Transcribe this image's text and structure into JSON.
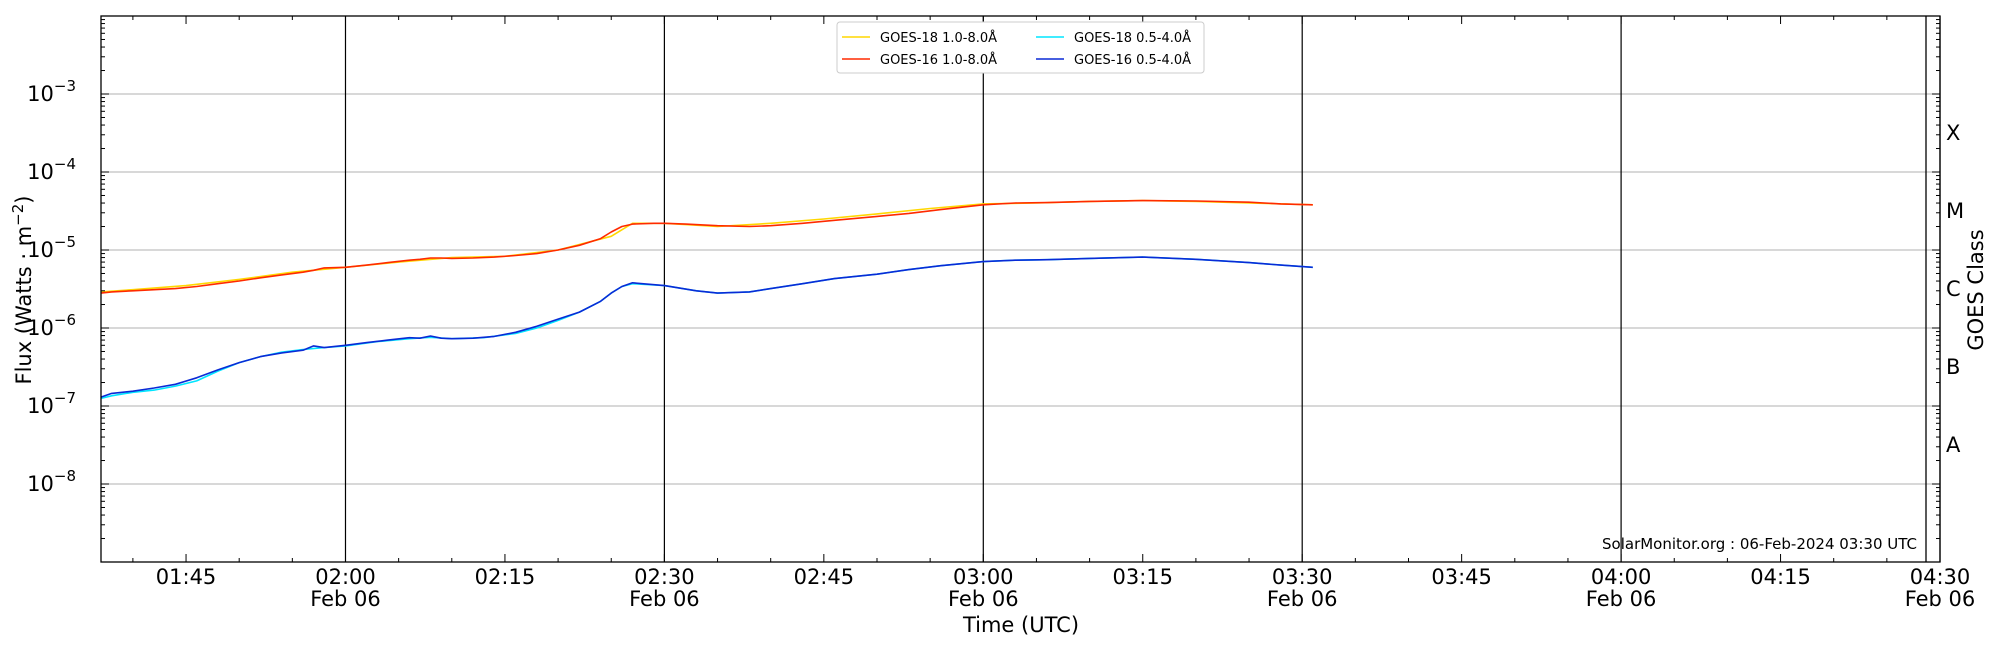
{
  "chart_data": {
    "type": "line",
    "ylabel": "Flux (Watts · m⁻²)",
    "xlabel": "Time (UTC)",
    "y2label": "GOES Class",
    "yscale": "log",
    "ylim": [
      1e-09,
      0.01
    ],
    "xlim_minutes": [
      97,
      270
    ],
    "credit": "SolarMonitor.org : 06-Feb-2024 03:30 UTC",
    "legend_position": "top-center",
    "grid": "horizontal at decades",
    "y_ticks": [
      {
        "value": 1e-08,
        "base": "10",
        "exp": "−8"
      },
      {
        "value": 1e-07,
        "base": "10",
        "exp": "−7"
      },
      {
        "value": 1e-06,
        "base": "10",
        "exp": "−6"
      },
      {
        "value": 1e-05,
        "base": "10",
        "exp": "−5"
      },
      {
        "value": 0.0001,
        "base": "10",
        "exp": "−4"
      },
      {
        "value": 0.001,
        "base": "10",
        "exp": "−3"
      }
    ],
    "x_ticks": [
      {
        "minute": 105,
        "time": "01:45",
        "date": ""
      },
      {
        "minute": 120,
        "time": "02:00",
        "date": "Feb 06"
      },
      {
        "minute": 135,
        "time": "02:15",
        "date": ""
      },
      {
        "minute": 150,
        "time": "02:30",
        "date": "Feb 06"
      },
      {
        "minute": 165,
        "time": "02:45",
        "date": ""
      },
      {
        "minute": 180,
        "time": "03:00",
        "date": "Feb 06"
      },
      {
        "minute": 195,
        "time": "03:15",
        "date": ""
      },
      {
        "minute": 210,
        "time": "03:30",
        "date": "Feb 06"
      },
      {
        "minute": 225,
        "time": "03:45",
        "date": ""
      },
      {
        "minute": 240,
        "time": "04:00",
        "date": "Feb 06"
      },
      {
        "minute": 255,
        "time": "04:15",
        "date": ""
      },
      {
        "minute": 270,
        "time": "04:30",
        "date": "Feb 06"
      }
    ],
    "vlines_minutes": [
      120,
      150,
      180,
      210,
      240,
      270
    ],
    "goes_classes": [
      {
        "label": "A",
        "min": 1e-08,
        "max": 1e-07
      },
      {
        "label": "B",
        "min": 1e-07,
        "max": 1e-06
      },
      {
        "label": "C",
        "min": 1e-06,
        "max": 1e-05
      },
      {
        "label": "M",
        "min": 1e-05,
        "max": 0.0001
      },
      {
        "label": "X",
        "min": 0.0001,
        "max": 0.001
      }
    ],
    "x_unit": "minutes after 00:00 UTC, 06-Feb-2024",
    "series": [
      {
        "name": "GOES-18 1.0-8.0Å",
        "color": "#ffd700",
        "x": [
          97,
          100,
          105,
          110,
          115,
          120,
          125,
          130,
          135,
          140,
          145,
          147,
          150,
          155,
          160,
          165,
          170,
          175,
          180,
          185,
          190,
          195,
          200,
          205,
          211
        ],
        "y": [
          2.9e-06,
          3.1e-06,
          3.5e-06,
          4.2e-06,
          5.2e-06,
          6e-06,
          7e-06,
          8e-06,
          8.3e-06,
          1e-05,
          1.5e-05,
          2.2e-05,
          2.2e-05,
          2e-05,
          2.2e-05,
          2.5e-05,
          2.9e-05,
          3.4e-05,
          3.9e-05,
          4e-05,
          4.2e-05,
          4.3e-05,
          4.2e-05,
          4e-05,
          3.8e-05
        ]
      },
      {
        "name": "GOES-16 1.0-8.0Å",
        "color": "#ff2a00",
        "x": [
          97,
          98,
          100,
          102,
          104,
          106,
          108,
          110,
          112,
          114,
          116,
          117,
          118,
          120,
          122,
          124,
          126,
          127,
          128,
          129,
          130,
          132,
          134,
          136,
          138,
          140,
          142,
          144,
          145,
          146,
          147,
          149,
          150,
          152,
          155,
          158,
          160,
          163,
          166,
          170,
          173,
          176,
          180,
          183,
          186,
          190,
          195,
          200,
          205,
          208,
          211
        ],
        "y": [
          2.8e-06,
          2.9e-06,
          3e-06,
          3.1e-06,
          3.2e-06,
          3.4e-06,
          3.7e-06,
          4e-06,
          4.4e-06,
          4.8e-06,
          5.2e-06,
          5.5e-06,
          5.9e-06,
          6e-06,
          6.4e-06,
          6.9e-06,
          7.4e-06,
          7.6e-06,
          7.9e-06,
          7.9e-06,
          7.8e-06,
          7.9e-06,
          8.1e-06,
          8.5e-06,
          9e-06,
          1e-05,
          1.15e-05,
          1.4e-05,
          1.7e-05,
          2e-05,
          2.15e-05,
          2.2e-05,
          2.2e-05,
          2.15e-05,
          2.05e-05,
          2e-05,
          2.05e-05,
          2.2e-05,
          2.4e-05,
          2.7e-05,
          2.95e-05,
          3.3e-05,
          3.8e-05,
          4e-05,
          4.05e-05,
          4.2e-05,
          4.3e-05,
          4.25e-05,
          4.1e-05,
          3.9e-05,
          3.8e-05
        ]
      },
      {
        "name": "GOES-18 0.5-4.0Å",
        "color": "#00e5ff",
        "x": [
          97,
          98,
          100,
          102,
          104,
          106,
          108,
          110,
          112,
          114,
          116,
          118,
          120,
          123,
          126,
          128,
          130,
          133,
          136,
          138,
          140,
          142,
          144,
          145,
          146,
          147,
          150,
          153,
          155,
          158,
          160,
          163,
          166,
          170,
          173,
          176,
          180,
          183,
          186,
          190,
          195,
          200,
          205,
          208,
          211
        ],
        "y": [
          1.25e-07,
          1.35e-07,
          1.5e-07,
          1.6e-07,
          1.8e-07,
          2.1e-07,
          2.8e-07,
          3.6e-07,
          4.3e-07,
          4.9e-07,
          5.3e-07,
          5.6e-07,
          5.9e-07,
          6.7e-07,
          7.3e-07,
          7.6e-07,
          7.3e-07,
          7.5e-07,
          8.5e-07,
          1e-06,
          1.25e-06,
          1.6e-06,
          2.2e-06,
          2.8e-06,
          3.4e-06,
          3.7e-06,
          3.5e-06,
          3e-06,
          2.8e-06,
          2.9e-06,
          3.2e-06,
          3.7e-06,
          4.3e-06,
          4.9e-06,
          5.6e-06,
          6.3e-06,
          7.1e-06,
          7.4e-06,
          7.5e-06,
          7.8e-06,
          8.1e-06,
          7.6e-06,
          6.9e-06,
          6.4e-06,
          6e-06
        ]
      },
      {
        "name": "GOES-16 0.5-4.0Å",
        "color": "#0a2ad6",
        "x": [
          97,
          98,
          100,
          102,
          104,
          106,
          108,
          110,
          112,
          114,
          116,
          117,
          118,
          120,
          122,
          124,
          126,
          127,
          128,
          129,
          130,
          132,
          134,
          136,
          138,
          140,
          142,
          144,
          145,
          146,
          147,
          150,
          153,
          155,
          158,
          160,
          163,
          166,
          170,
          173,
          176,
          180,
          183,
          186,
          190,
          195,
          200,
          205,
          208,
          211
        ],
        "y": [
          1.3e-07,
          1.45e-07,
          1.55e-07,
          1.7e-07,
          1.9e-07,
          2.3e-07,
          2.9e-07,
          3.6e-07,
          4.3e-07,
          4.8e-07,
          5.2e-07,
          5.9e-07,
          5.6e-07,
          6e-07,
          6.5e-07,
          7e-07,
          7.5e-07,
          7.4e-07,
          7.9e-07,
          7.4e-07,
          7.3e-07,
          7.4e-07,
          7.8e-07,
          8.8e-07,
          1.05e-06,
          1.3e-06,
          1.6e-06,
          2.2e-06,
          2.8e-06,
          3.4e-06,
          3.8e-06,
          3.5e-06,
          3e-06,
          2.8e-06,
          2.9e-06,
          3.2e-06,
          3.7e-06,
          4.3e-06,
          4.9e-06,
          5.6e-06,
          6.3e-06,
          7.1e-06,
          7.4e-06,
          7.5e-06,
          7.8e-06,
          8.1e-06,
          7.6e-06,
          6.9e-06,
          6.4e-06,
          6e-06
        ]
      }
    ]
  }
}
